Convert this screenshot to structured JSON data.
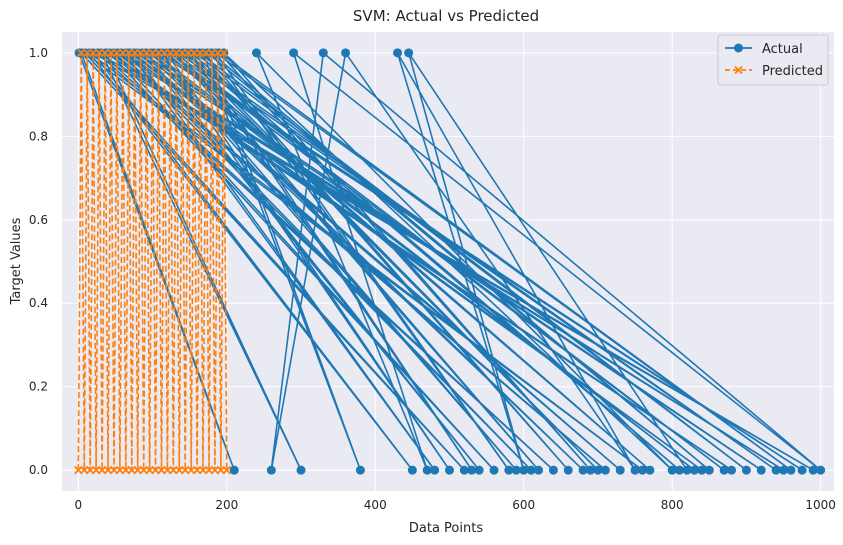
{
  "chart_data": {
    "type": "line",
    "title": "SVM: Actual vs Predicted",
    "xlabel": "Data Points",
    "ylabel": "Target Values",
    "xlim": [
      -22,
      1018
    ],
    "ylim": [
      -0.05,
      1.05
    ],
    "xticks": [
      0,
      200,
      400,
      600,
      800,
      1000
    ],
    "yticks": [
      0.0,
      0.2,
      0.4,
      0.6,
      0.8,
      1.0
    ],
    "grid": true,
    "legend_position": "top-right",
    "colors": {
      "actual": "#1f77b4",
      "predicted": "#ff7f0e",
      "background": "#eaeaf2",
      "grid": "#ffffff"
    },
    "series": [
      {
        "name": "Actual",
        "marker": "circle",
        "line_style": "solid",
        "x": [
          1,
          210,
          4,
          520,
          9,
          760,
          15,
          450,
          20,
          990,
          26,
          640,
          31,
          300,
          37,
          880,
          42,
          560,
          48,
          710,
          53,
          950,
          58,
          610,
          64,
          840,
          69,
          480,
          75,
          730,
          80,
          920,
          86,
          540,
          91,
          680,
          97,
          830,
          102,
          590,
          108,
          975,
          113,
          500,
          119,
          770,
          124,
          870,
          130,
          620,
          135,
          940,
          141,
          700,
          146,
          810,
          152,
          530,
          157,
          900,
          163,
          660,
          168,
          380,
          174,
          850,
          179,
          580,
          185,
          960,
          190,
          690,
          196,
          800,
          240,
          470,
          290,
          1000,
          330,
          260,
          360,
          750,
          430,
          600,
          445,
          820
        ],
        "y": [
          1,
          0,
          1,
          0,
          1,
          0,
          1,
          0,
          1,
          0,
          1,
          0,
          1,
          0,
          1,
          0,
          1,
          0,
          1,
          0,
          1,
          0,
          1,
          0,
          1,
          0,
          1,
          0,
          1,
          0,
          1,
          0,
          1,
          0,
          1,
          0,
          1,
          0,
          1,
          0,
          1,
          0,
          1,
          0,
          1,
          0,
          1,
          0,
          1,
          0,
          1,
          0,
          1,
          0,
          1,
          0,
          1,
          0,
          1,
          0,
          1,
          0,
          1,
          0,
          1,
          0,
          1,
          0,
          1,
          0,
          1,
          0,
          1,
          0,
          1,
          0,
          1,
          0,
          1,
          0,
          1,
          0,
          1,
          0,
          1,
          0
        ]
      },
      {
        "name": "Predicted",
        "marker": "x",
        "line_style": "dashed",
        "x": [
          0,
          4,
          8,
          12,
          16,
          20,
          24,
          28,
          32,
          36,
          40,
          44,
          48,
          52,
          56,
          60,
          64,
          68,
          72,
          76,
          80,
          84,
          88,
          92,
          96,
          100,
          104,
          108,
          112,
          116,
          120,
          124,
          128,
          132,
          136,
          140,
          144,
          148,
          152,
          156,
          160,
          164,
          168,
          172,
          176,
          180,
          184,
          188,
          192,
          196,
          200
        ],
        "y": [
          0,
          1,
          0,
          1,
          0,
          1,
          0,
          1,
          0,
          1,
          0,
          1,
          0,
          1,
          0,
          1,
          0,
          1,
          0,
          1,
          0,
          1,
          0,
          1,
          0,
          1,
          0,
          1,
          0,
          1,
          0,
          1,
          0,
          1,
          0,
          1,
          0,
          1,
          0,
          1,
          0,
          1,
          0,
          1,
          0,
          1,
          0,
          1,
          0,
          1,
          0
        ]
      }
    ]
  }
}
